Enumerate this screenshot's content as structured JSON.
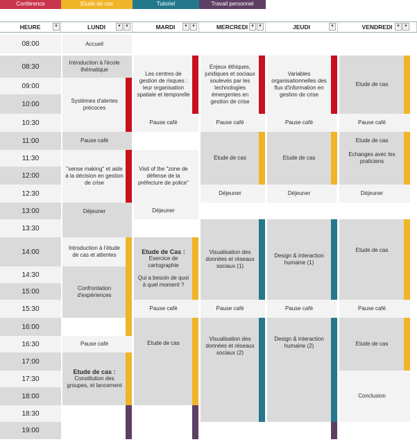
{
  "legend": [
    {
      "label": "Conférence",
      "color": "#c8364d"
    },
    {
      "label": "Etude de cas",
      "color": "#f0b428"
    },
    {
      "label": "Tutoriel",
      "color": "#24788c"
    },
    {
      "label": "Travail personnel",
      "color": "#5e3f64"
    }
  ],
  "colors": {
    "light": "#f3f3f3",
    "dark": "#dadada",
    "conference": "#c8101e",
    "etude": "#f0b428",
    "tutoriel": "#24788c",
    "travail": "#5e3f64"
  },
  "columns": [
    "HEURE",
    "LUNDI",
    "MARDI",
    "MERCREDI",
    "JEUDI",
    "VENDREDI"
  ],
  "times": [
    "08:00",
    "08:30",
    "09:00",
    "10:00",
    "10:30",
    "11:00",
    "11:30",
    "12:00",
    "12:30",
    "13:00",
    "13:30",
    "14:00",
    "14:30",
    "15:00",
    "15:30",
    "16:00",
    "16:30",
    "17:00",
    "17:30",
    "18:00",
    "18:30",
    "19:00"
  ],
  "events": {
    "lundi": [
      "Accueil",
      "Introduction à l'école thématique",
      "Systèmes d'alertes précoces",
      "Pause café",
      "\"sense making\" et aide à la décision en gestion de crise",
      "Déjeuner",
      "Introduction à l'étude de cas et attentes",
      "Confrontation d'expériences",
      "Pause café",
      "Etude de cas :",
      "Constitution des groupes, et lancement"
    ],
    "mardi": [
      "Les centres de gestion de risques : leur organisation spatiale et temporelle",
      "Pause café",
      "Visit of the \"zone de défense de la préfecture de police\"",
      "Déjeuner",
      "Etude de Cas :",
      "Exercice de cartographie",
      "Qui a besoin de quoi à quel moment ?",
      "Pause café",
      "Etude de cas"
    ],
    "mercredi": [
      "Enjeux éthiques, juridiques et sociaux soulevés par les technologies émergentes en gestion de crise",
      "Pause café",
      "Etude de cas",
      "Déjeuner",
      "Visualisation des données et réseaux sociaux (1)",
      "Pause café",
      "Visualisation des données et réseaux sociaux (2)"
    ],
    "jeudi": [
      "Variables organisationnelles des flux d'information en gestion de crise",
      "Pause café",
      "Etude de cas",
      "Déjeuner",
      "Design & interaction humaine (1)",
      "Pause café",
      "Design & interaction humaine (2)"
    ],
    "vendredi": [
      "Etude de cas",
      "Pause café",
      "Etude de cas",
      "Echanges avec les praticiens",
      "Déjeuner",
      "Etude de cas",
      "Pause café",
      "Etude de cas",
      "Conclusion"
    ]
  }
}
